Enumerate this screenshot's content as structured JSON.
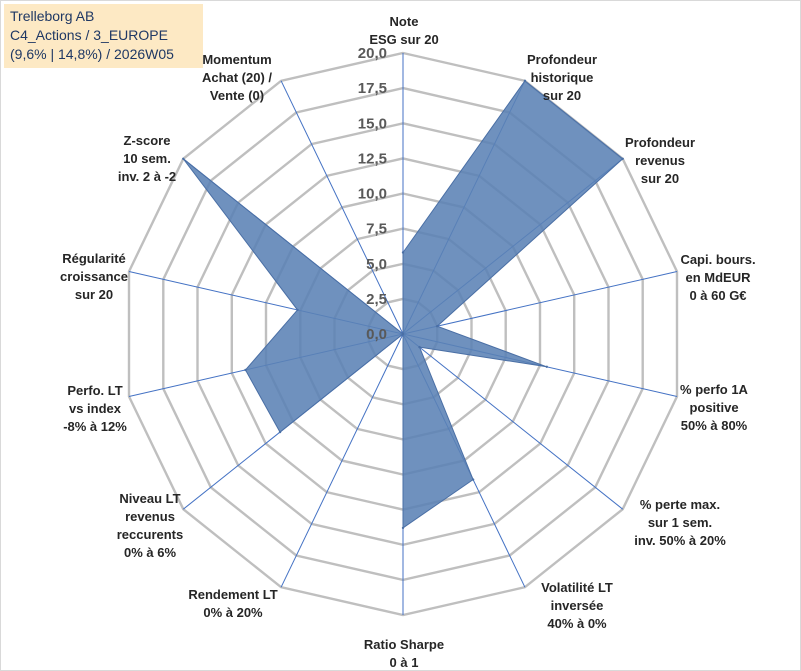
{
  "title": {
    "line1": "Trelleborg AB",
    "line2": "C4_Actions / 3_EUROPE",
    "line3": "(9,6% | 14,8%) / 2026W05"
  },
  "colors": {
    "grid": "#bfbfbf",
    "spoke": "#4472c4",
    "fill": "#5b82b5",
    "stroke": "#4a6fa5",
    "title_bg": "#fde9c4",
    "title_text": "#1f3864"
  },
  "chart_data": {
    "type": "radar",
    "rmin": 0,
    "rmax": 20,
    "tick_step": 2.5,
    "tick_labels": [
      "0,0",
      "2,5",
      "5,0",
      "7,5",
      "10,0",
      "12,5",
      "15,0",
      "17,5",
      "20,0"
    ],
    "axes": [
      {
        "lines": [
          "Note",
          "ESG sur 20"
        ],
        "value": 5.8
      },
      {
        "lines": [
          "Profondeur",
          "historique",
          "sur 20"
        ],
        "value": 20
      },
      {
        "lines": [
          "Profondeur",
          "revenus",
          "sur 20"
        ],
        "value": 20
      },
      {
        "lines": [
          "Capi. bours.",
          "en MdEUR",
          "0 à 60 G€"
        ],
        "value": 2.5
      },
      {
        "lines": [
          "% perfo 1A",
          "positive",
          "50% à 80%"
        ],
        "value": 10.5
      },
      {
        "lines": [
          "% perte max.",
          "sur 1 sem.",
          "inv. 50% à 20%"
        ],
        "value": 1.5
      },
      {
        "lines": [
          "Volatilité LT",
          "inversée",
          "40% à 0%"
        ],
        "value": 11.5
      },
      {
        "lines": [
          "Ratio Sharpe",
          "0 à 1"
        ],
        "value": 13.8
      },
      {
        "lines": [
          "Rendement LT",
          "0% à 20%"
        ],
        "value": 0
      },
      {
        "lines": [
          "Niveau LT",
          "revenus",
          "reccurents",
          "0% à 6%"
        ],
        "value": 11.2
      },
      {
        "lines": [
          "Perfo. LT",
          "vs index",
          "-8% à 12%"
        ],
        "value": 11.5
      },
      {
        "lines": [
          "Régularité",
          "croissance",
          "sur 20"
        ],
        "value": 7.7
      },
      {
        "lines": [
          "Z-score",
          "10 sem.",
          "inv. 2 à -2"
        ],
        "value": 20
      },
      {
        "lines": [
          "Momentum",
          "Achat (20) /",
          "Vente (0)"
        ],
        "value": 0
      }
    ]
  }
}
